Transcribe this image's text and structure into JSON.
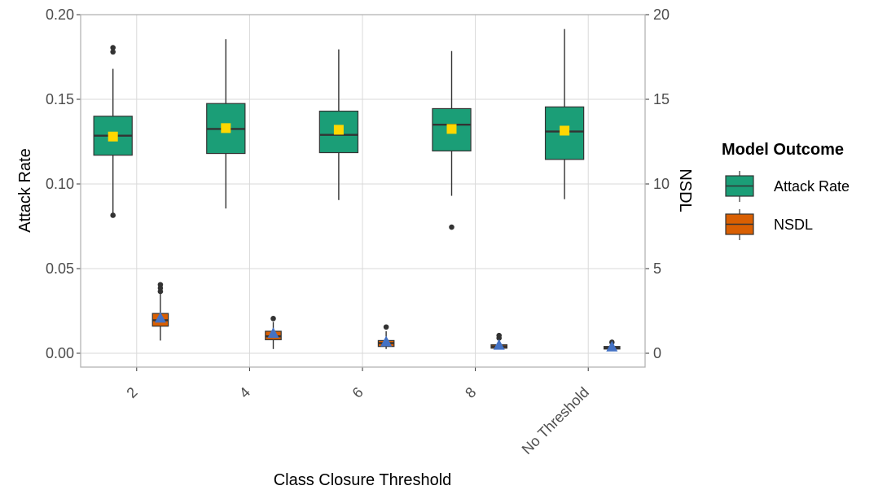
{
  "chart_data": {
    "type": "box",
    "xlabel": "Class Closure Threshold",
    "ylabel_left": "Attack Rate",
    "ylabel_right": "NSDL",
    "categories": [
      "2",
      "4",
      "6",
      "8",
      "No Threshold"
    ],
    "ylim_left": [
      -0.008,
      0.2
    ],
    "ylim_right": [
      -0.8,
      20
    ],
    "yticks_left": [
      "0.00",
      "0.05",
      "0.10",
      "0.15",
      "0.20"
    ],
    "yticks_right": [
      "0",
      "5",
      "10",
      "15",
      "20"
    ],
    "grid": true,
    "legend": {
      "title": "Model Outcome",
      "placement": "right",
      "entries": [
        "Attack Rate",
        "NSDL"
      ]
    },
    "series": [
      {
        "name": "Attack Rate",
        "axis": "left",
        "color": "#1b9e77",
        "mean_marker": "square",
        "mean_color": "#ffd700",
        "boxes": [
          {
            "category": "2",
            "min": 0.0815,
            "q1": 0.117,
            "median": 0.1285,
            "q3": 0.14,
            "max": 0.168,
            "mean": 0.128,
            "outliers": [
              0.0815,
              0.178,
              0.1805
            ]
          },
          {
            "category": "4",
            "min": 0.0855,
            "q1": 0.118,
            "median": 0.1325,
            "q3": 0.1475,
            "max": 0.1855,
            "mean": 0.133,
            "outliers": []
          },
          {
            "category": "6",
            "min": 0.0905,
            "q1": 0.1185,
            "median": 0.129,
            "q3": 0.143,
            "max": 0.1795,
            "mean": 0.132,
            "outliers": []
          },
          {
            "category": "8",
            "min": 0.093,
            "q1": 0.1195,
            "median": 0.135,
            "q3": 0.1445,
            "max": 0.1785,
            "mean": 0.1325,
            "outliers": [
              0.0745
            ]
          },
          {
            "category": "No Threshold",
            "min": 0.091,
            "q1": 0.1145,
            "median": 0.131,
            "q3": 0.1455,
            "max": 0.1915,
            "mean": 0.1315,
            "outliers": []
          }
        ]
      },
      {
        "name": "NSDL",
        "axis": "right",
        "color": "#d95f02",
        "mean_marker": "triangle",
        "mean_color": "#4472c4",
        "boxes": [
          {
            "category": "2",
            "min": 0.75,
            "q1": 1.6,
            "median": 1.95,
            "q3": 2.35,
            "max": 3.5,
            "mean": 2.05,
            "outliers": [
              3.65,
              3.85,
              4.05
            ]
          },
          {
            "category": "4",
            "min": 0.25,
            "q1": 0.8,
            "median": 1.0,
            "q3": 1.3,
            "max": 1.85,
            "mean": 1.15,
            "outliers": [
              2.05
            ]
          },
          {
            "category": "6",
            "min": 0.25,
            "q1": 0.4,
            "median": 0.6,
            "q3": 0.75,
            "max": 1.3,
            "mean": 0.65,
            "outliers": [
              1.55
            ]
          },
          {
            "category": "8",
            "min": 0.25,
            "q1": 0.3,
            "median": 0.4,
            "q3": 0.5,
            "max": 0.75,
            "mean": 0.45,
            "outliers": [
              0.9,
              1.05
            ]
          },
          {
            "category": "No Threshold",
            "min": 0.2,
            "q1": 0.25,
            "median": 0.32,
            "q3": 0.4,
            "max": 0.5,
            "mean": 0.35,
            "outliers": [
              0.65
            ]
          }
        ]
      }
    ]
  }
}
